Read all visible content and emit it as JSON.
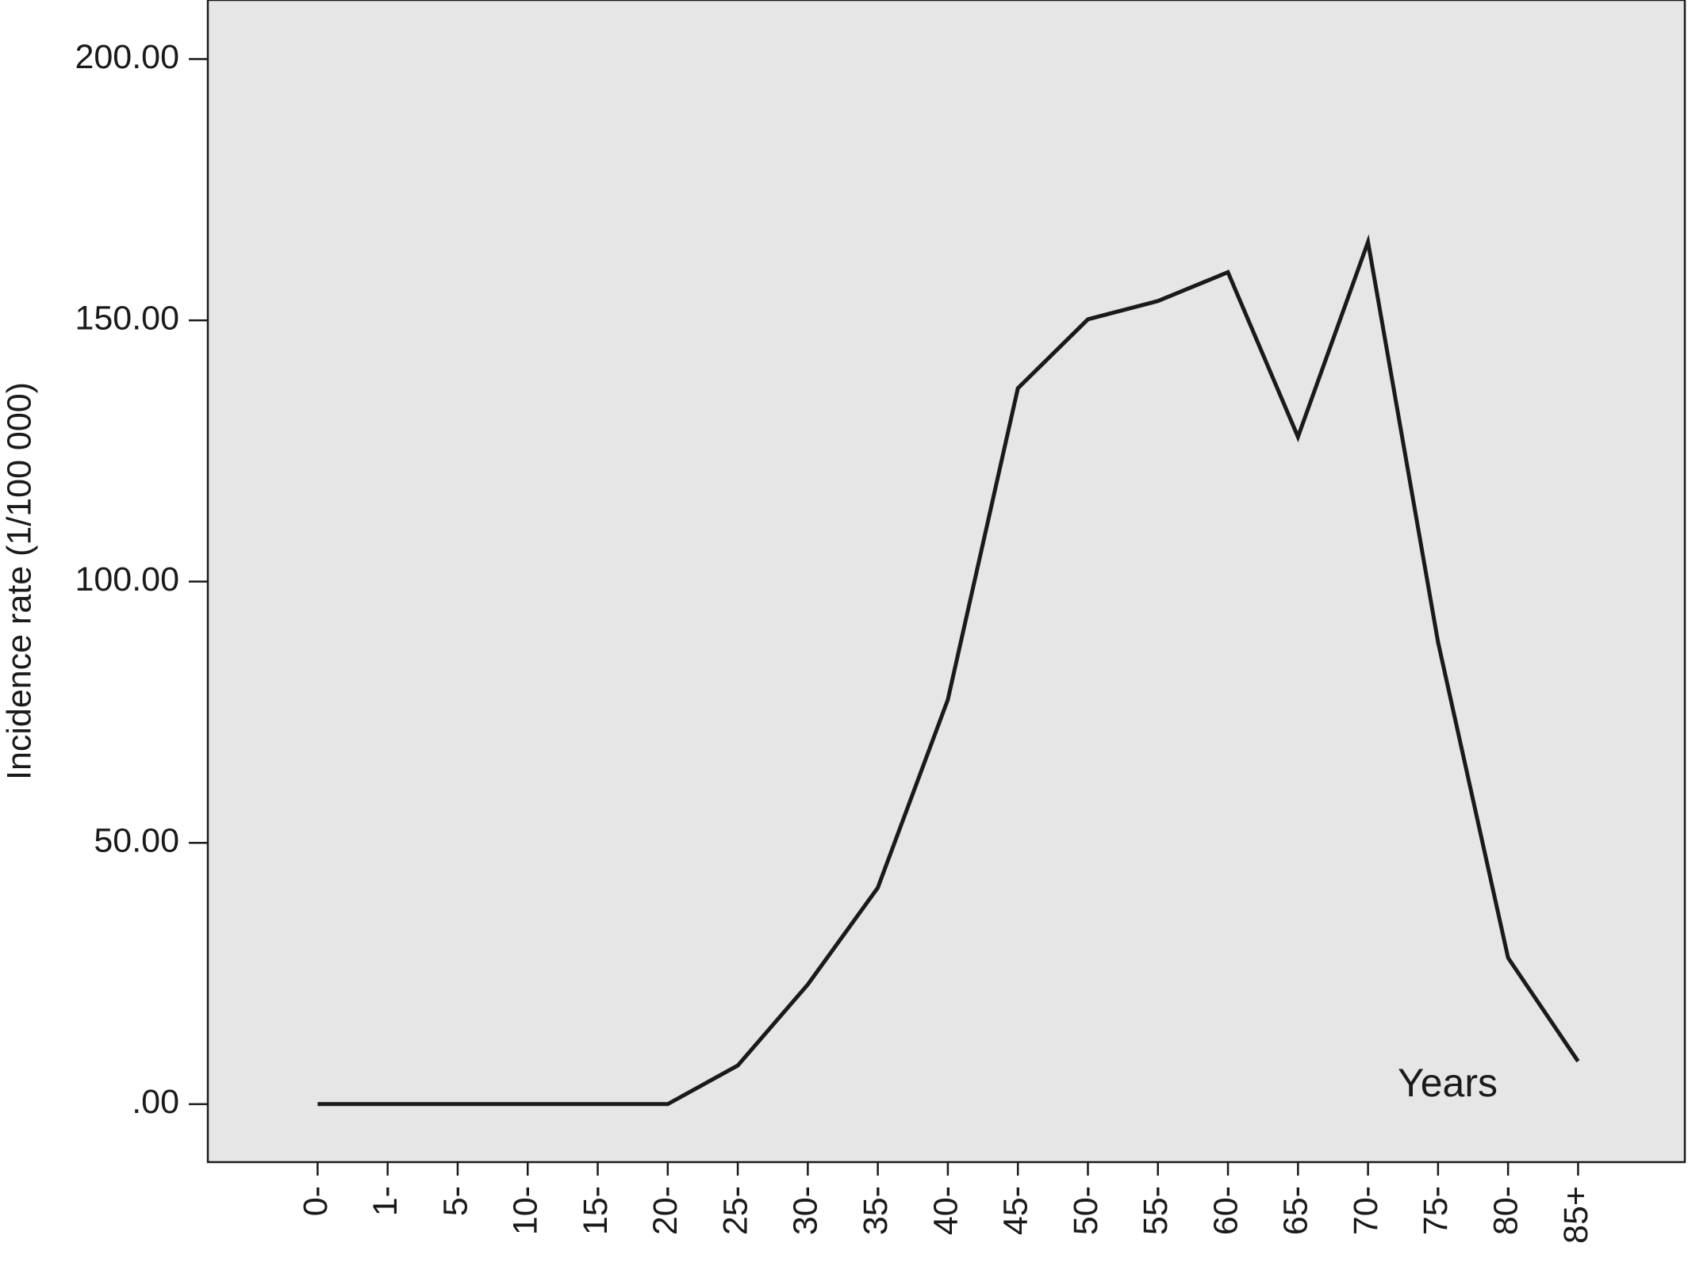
{
  "chart_data": {
    "type": "line",
    "y_label": "Incidence rate (1/100 000)",
    "x_label": "Years",
    "categories": [
      "0-",
      "1-",
      "5-",
      "10-",
      "15-",
      "20-",
      "25-",
      "30-",
      "35-",
      "40-",
      "45-",
      "50-",
      "55-",
      "60-",
      "65-",
      "70-",
      "75-",
      "80-",
      "85+"
    ],
    "values": [
      0,
      0,
      0,
      0,
      0,
      0,
      7.4,
      22.9,
      41.4,
      77.4,
      137,
      150.2,
      153.7,
      159.2,
      127.7,
      165,
      88.4,
      28,
      8.2
    ],
    "color": "#1a1a1a",
    "background": "#e6e6e6",
    "ylim": [
      -11.1,
      211.3
    ],
    "yticks": [
      {
        "value": 0,
        "label": ".00"
      },
      {
        "value": 50,
        "label": "50.00"
      },
      {
        "value": 100,
        "label": "100.00"
      },
      {
        "value": 150,
        "label": "150.00"
      },
      {
        "value": 200,
        "label": "200.00"
      }
    ]
  }
}
